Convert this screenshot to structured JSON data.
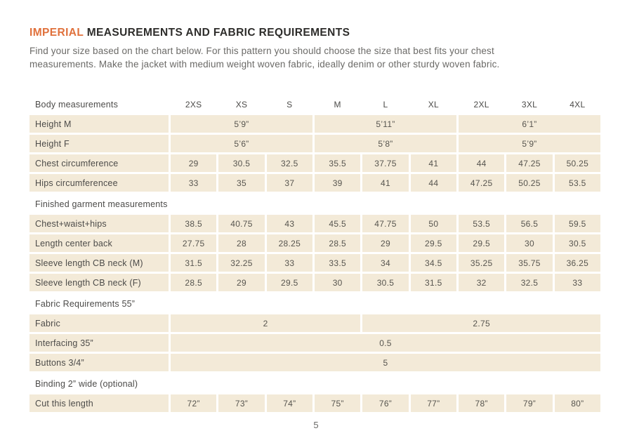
{
  "colors": {
    "accent": "#e0713c",
    "cell_bg": "#f3ead8",
    "text_dark": "#2e2d2b",
    "text_gray": "#6b6a67",
    "text_label": "#4c4b49",
    "text_value": "#57554f"
  },
  "header": {
    "title_accent": "IMPERIAL",
    "title_rest": " MEASUREMENTS AND FABRIC REQUIREMENTS",
    "intro_line1": "Find your size based on the chart below. For this pattern you should choose the size that best fits your chest",
    "intro_line2": "measurements. Make the jacket with medium weight woven fabric, ideally denim or other sturdy woven fabric."
  },
  "table": {
    "header_label": "Body measurements",
    "sizes": [
      "2XS",
      "XS",
      "S",
      "M",
      "L",
      "XL",
      "2XL",
      "3XL",
      "4XL"
    ],
    "rows": [
      {
        "kind": "data",
        "label": "Height M",
        "cells": [
          {
            "span": 3,
            "value": "5’9”"
          },
          {
            "span": 3,
            "value": "5’11”"
          },
          {
            "span": 3,
            "value": "6’1”"
          }
        ]
      },
      {
        "kind": "data",
        "label": "Height F",
        "cells": [
          {
            "span": 3,
            "value": "5’6”"
          },
          {
            "span": 3,
            "value": "5’8”"
          },
          {
            "span": 3,
            "value": "5’9”"
          }
        ]
      },
      {
        "kind": "data",
        "label": "Chest circumference",
        "cells": [
          {
            "span": 1,
            "value": "29"
          },
          {
            "span": 1,
            "value": "30.5"
          },
          {
            "span": 1,
            "value": "32.5"
          },
          {
            "span": 1,
            "value": "35.5"
          },
          {
            "span": 1,
            "value": "37.75"
          },
          {
            "span": 1,
            "value": "41"
          },
          {
            "span": 1,
            "value": "44"
          },
          {
            "span": 1,
            "value": "47.25"
          },
          {
            "span": 1,
            "value": "50.25"
          }
        ]
      },
      {
        "kind": "data",
        "label": "Hips circumferencee",
        "cells": [
          {
            "span": 1,
            "value": "33"
          },
          {
            "span": 1,
            "value": "35"
          },
          {
            "span": 1,
            "value": "37"
          },
          {
            "span": 1,
            "value": "39"
          },
          {
            "span": 1,
            "value": "41"
          },
          {
            "span": 1,
            "value": "44"
          },
          {
            "span": 1,
            "value": "47.25"
          },
          {
            "span": 1,
            "value": "50.25"
          },
          {
            "span": 1,
            "value": "53.5"
          }
        ]
      },
      {
        "kind": "section",
        "label": "Finished garment measurements"
      },
      {
        "kind": "data",
        "label": "Chest+waist+hips",
        "cells": [
          {
            "span": 1,
            "value": "38.5"
          },
          {
            "span": 1,
            "value": "40.75"
          },
          {
            "span": 1,
            "value": "43"
          },
          {
            "span": 1,
            "value": "45.5"
          },
          {
            "span": 1,
            "value": "47.75"
          },
          {
            "span": 1,
            "value": "50"
          },
          {
            "span": 1,
            "value": "53.5"
          },
          {
            "span": 1,
            "value": "56.5"
          },
          {
            "span": 1,
            "value": "59.5"
          }
        ]
      },
      {
        "kind": "data",
        "label": "Length center back",
        "cells": [
          {
            "span": 1,
            "value": "27.75"
          },
          {
            "span": 1,
            "value": "28"
          },
          {
            "span": 1,
            "value": "28.25"
          },
          {
            "span": 1,
            "value": "28.5"
          },
          {
            "span": 1,
            "value": "29"
          },
          {
            "span": 1,
            "value": "29.5"
          },
          {
            "span": 1,
            "value": "29.5"
          },
          {
            "span": 1,
            "value": "30"
          },
          {
            "span": 1,
            "value": "30.5"
          }
        ]
      },
      {
        "kind": "data",
        "label": "Sleeve length CB neck (M)",
        "cells": [
          {
            "span": 1,
            "value": "31.5"
          },
          {
            "span": 1,
            "value": "32.25"
          },
          {
            "span": 1,
            "value": "33"
          },
          {
            "span": 1,
            "value": "33.5"
          },
          {
            "span": 1,
            "value": "34"
          },
          {
            "span": 1,
            "value": "34.5"
          },
          {
            "span": 1,
            "value": "35.25"
          },
          {
            "span": 1,
            "value": "35.75"
          },
          {
            "span": 1,
            "value": "36.25"
          }
        ]
      },
      {
        "kind": "data",
        "label": "Sleeve length CB neck (F)",
        "cells": [
          {
            "span": 1,
            "value": "28.5"
          },
          {
            "span": 1,
            "value": "29"
          },
          {
            "span": 1,
            "value": "29.5"
          },
          {
            "span": 1,
            "value": "30"
          },
          {
            "span": 1,
            "value": "30.5"
          },
          {
            "span": 1,
            "value": "31.5"
          },
          {
            "span": 1,
            "value": "32"
          },
          {
            "span": 1,
            "value": "32.5"
          },
          {
            "span": 1,
            "value": "33"
          }
        ]
      },
      {
        "kind": "section",
        "label": "Fabric Requirements 55”"
      },
      {
        "kind": "data",
        "label": "Fabric",
        "cells": [
          {
            "span": 4,
            "value": "2"
          },
          {
            "span": 5,
            "value": "2.75"
          }
        ]
      },
      {
        "kind": "data",
        "label": "Interfacing 35”",
        "cells": [
          {
            "span": 9,
            "value": "0.5"
          }
        ]
      },
      {
        "kind": "data",
        "label": "Buttons 3/4”",
        "cells": [
          {
            "span": 9,
            "value": "5"
          }
        ]
      },
      {
        "kind": "section",
        "label": "Binding 2” wide (optional)"
      },
      {
        "kind": "data",
        "label": "Cut this length",
        "cells": [
          {
            "span": 1,
            "value": "72”"
          },
          {
            "span": 1,
            "value": "73”"
          },
          {
            "span": 1,
            "value": "74”"
          },
          {
            "span": 1,
            "value": "75”"
          },
          {
            "span": 1,
            "value": "76”"
          },
          {
            "span": 1,
            "value": "77”"
          },
          {
            "span": 1,
            "value": "78”"
          },
          {
            "span": 1,
            "value": "79”"
          },
          {
            "span": 1,
            "value": "80”"
          }
        ]
      }
    ]
  },
  "footer": {
    "page_number": "5"
  }
}
